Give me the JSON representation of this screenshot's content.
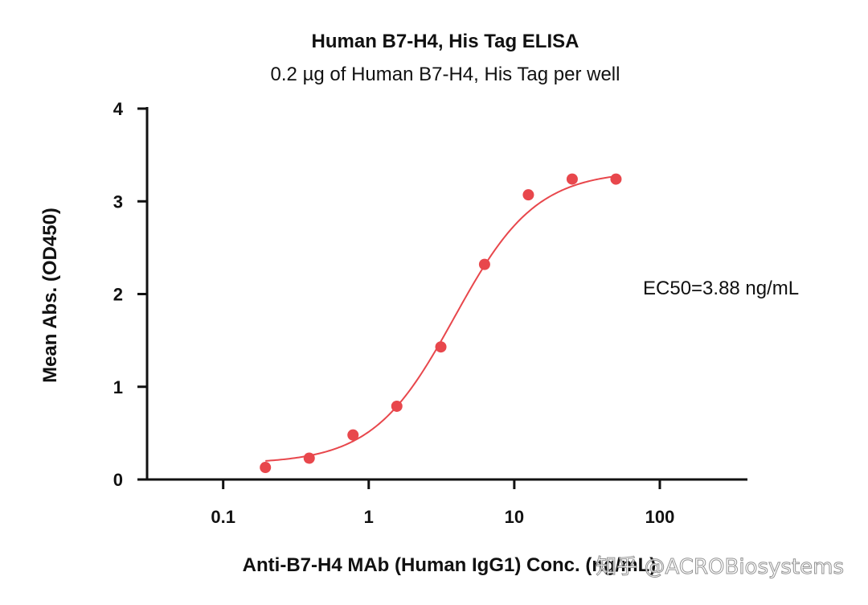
{
  "chart_data": {
    "type": "scatter",
    "title": "Human B7-H4, His Tag ELISA",
    "subtitle": "0.2 µg of Human B7-H4, His Tag per well",
    "xlabel": "Anti-B7-H4 MAb (Human IgG1) Conc. (ng/mL)",
    "ylabel": "Mean Abs. (OD450)",
    "x_scale": "log",
    "xlim": [
      0.03,
      400
    ],
    "ylim": [
      0,
      4
    ],
    "x_ticks": [
      0.1,
      1,
      10,
      100
    ],
    "x_tick_labels": [
      "0.1",
      "1",
      "10",
      "100"
    ],
    "y_ticks": [
      0,
      1,
      2,
      3,
      4
    ],
    "y_tick_labels": [
      "0",
      "1",
      "2",
      "3",
      "4"
    ],
    "series": [
      {
        "color": "#e8474c",
        "x": [
          0.195,
          0.39,
          0.78,
          1.56,
          3.13,
          6.25,
          12.5,
          25,
          50
        ],
        "y": [
          0.13,
          0.23,
          0.48,
          0.79,
          1.43,
          2.32,
          3.07,
          3.24,
          3.24
        ]
      }
    ],
    "fit": {
      "type": "4PL",
      "color": "#e8474c",
      "bottom": 0.17,
      "top": 3.33,
      "ec50": 3.88,
      "hill": 1.55,
      "x_range": [
        0.195,
        50
      ]
    },
    "annotations": [
      "EC50=3.88 ng/mL"
    ],
    "grid": false,
    "legend": "none"
  },
  "watermark": "知乎 @ACROBiosystems"
}
